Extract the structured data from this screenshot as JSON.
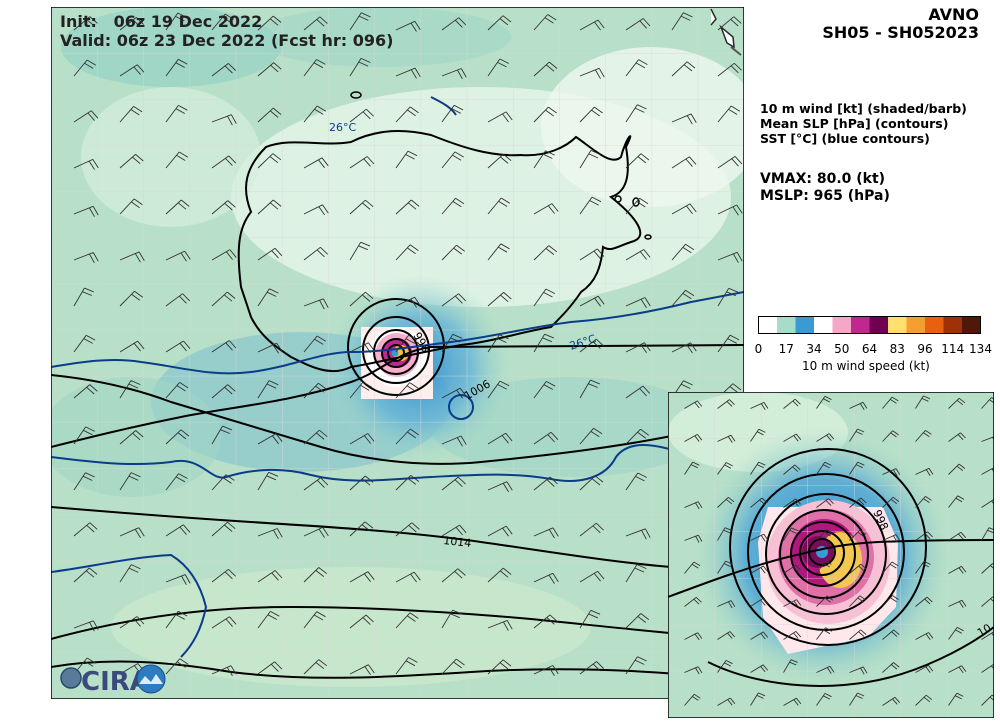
{
  "header": {
    "init_label": "Init:",
    "init_value": "06z 19 Dec 2022",
    "valid_label": "Valid:",
    "valid_value": "06z 23 Dec 2022 (Fcst hr: 096)"
  },
  "title": {
    "model": "AVNO",
    "storm": "SH05 - SH052023"
  },
  "legend": {
    "line1": "10 m wind [kt] (shaded/barb)",
    "line2": "Mean SLP [hPa] (contours)",
    "line3": "SST [°C] (blue contours)"
  },
  "stats": {
    "vmax": "VMAX:  80.0 (kt)",
    "mslp": "MSLP:  965 (hPa)"
  },
  "colorbar": {
    "label": "10 m wind speed (kt)",
    "ticks": [
      "0",
      "17",
      "34",
      "50",
      "64",
      "83",
      "96",
      "114",
      "134"
    ],
    "tick_values": [
      0,
      17,
      34,
      50,
      64,
      83,
      96,
      114,
      134
    ],
    "max": 134,
    "colors": [
      "#ffffff",
      "#a8dcc8",
      "#3a9ad4",
      "#ffffff",
      "#f4a8c8",
      "#c02890",
      "#700050",
      "#ffe070",
      "#f4a030",
      "#e86010",
      "#a03008",
      "#501808"
    ]
  },
  "map": {
    "contour_labels": {
      "sst_a": "26°C",
      "sst_b": "26°C",
      "slp_998": "998",
      "slp_1006": "1006",
      "slp_1014": "1014"
    },
    "inset_labels": {
      "slp_a": "998",
      "slp_b": "10"
    },
    "logo": "CIRA"
  }
}
